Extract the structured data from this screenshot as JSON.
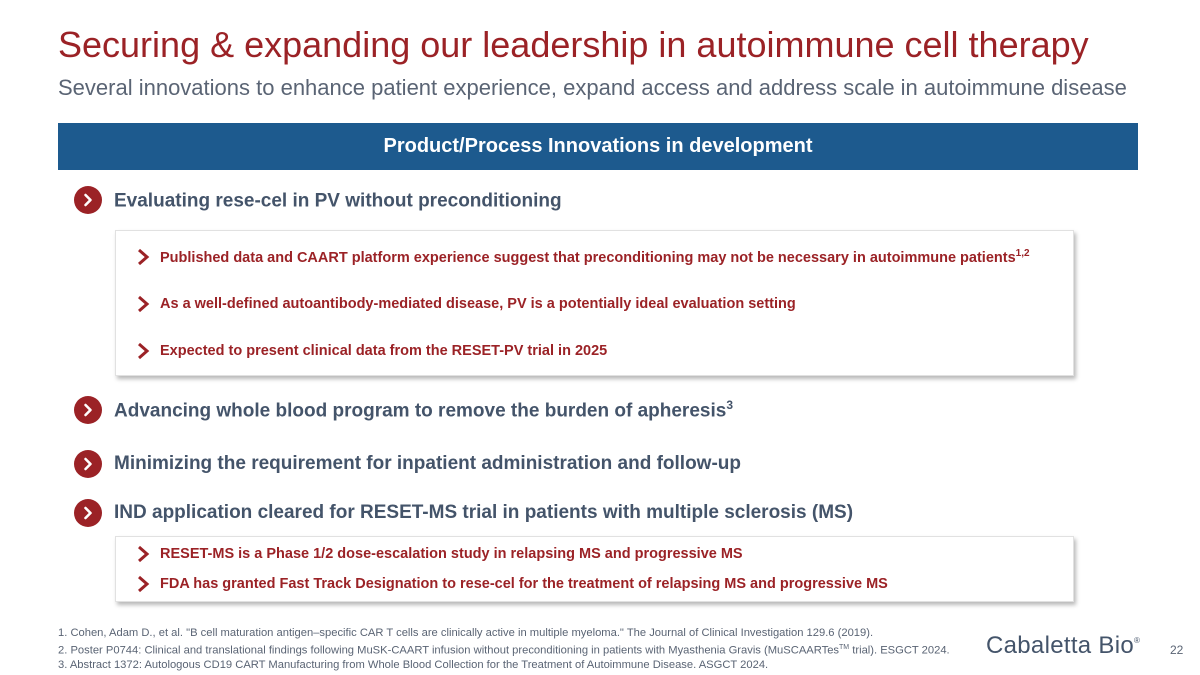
{
  "slide": {
    "title": "Securing & expanding our leadership in autoimmune cell therapy",
    "subtitle": "Several innovations to enhance patient experience, expand access and address scale in autoimmune disease",
    "banner": "Product/Process Innovations in development"
  },
  "sections": [
    {
      "text": "Evaluating rese-cel in PV without preconditioning",
      "sup": ""
    },
    {
      "text": "Advancing whole blood program to remove the burden of apheresis",
      "sup": "3"
    },
    {
      "text": "Minimizing the requirement for inpatient administration and follow-up",
      "sup": ""
    },
    {
      "text": "IND application cleared for RESET-MS trial in patients with multiple sclerosis (MS)",
      "sup": ""
    }
  ],
  "card1": [
    {
      "text": "Published data and CAART platform experience suggest that preconditioning may not be necessary in autoimmune patients",
      "sup": "1,2"
    },
    {
      "text": "As a well-defined autoantibody-mediated disease, PV is a potentially ideal evaluation setting",
      "sup": ""
    },
    {
      "text": "Expected to present clinical data from the RESET-PV trial in 2025",
      "sup": ""
    }
  ],
  "card2": [
    {
      "text": "RESET-MS is a Phase 1/2 dose-escalation study in relapsing MS and progressive MS",
      "sup": ""
    },
    {
      "text": "FDA has granted Fast Track Designation to rese-cel for the treatment of relapsing MS and progressive MS",
      "sup": ""
    }
  ],
  "footnotes": {
    "fn1": "1. Cohen, Adam D., et al. \"B cell maturation antigen–specific CAR T cells are clinically active in multiple myeloma.\" The Journal of Clinical Investigation 129.6 (2019).",
    "fn2_before": "2. Poster P0744: Clinical and translational findings following MuSK-CAART infusion without preconditioning in patients with Myasthenia Gravis (MuSCAARTes",
    "fn2_sup": "TM",
    "fn2_after": " trial). ESGCT 2024.",
    "fn3": "3. Abstract 1372: Autologous CD19 CART Manufacturing from Whole Blood Collection for the Treatment of Autoimmune Disease. ASGCT 2024."
  },
  "logo": {
    "text": "Cabaletta Bio",
    "mark": "®"
  },
  "page_number": "22",
  "colors": {
    "accent": "#9b2226",
    "banner": "#1d5a8e",
    "heading": "#44546a",
    "muted": "#5a6474"
  },
  "icons": {
    "section": "chevron-right-circle-icon",
    "bullet": "chevron-right-icon"
  }
}
